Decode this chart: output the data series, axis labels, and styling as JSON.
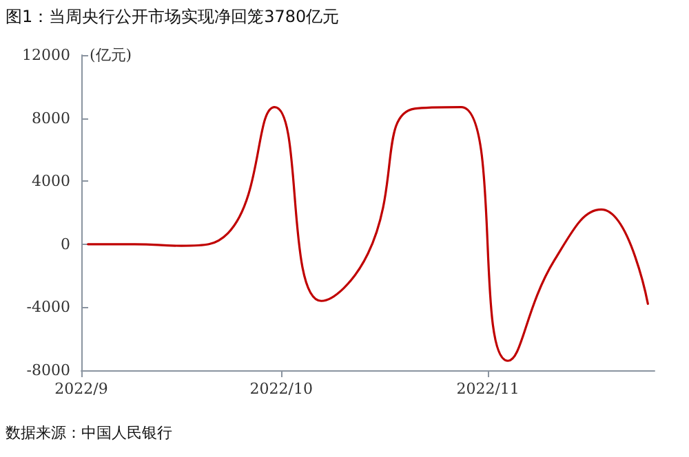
{
  "chart_data": {
    "type": "line",
    "title": "图1：当周央行公开市场实现净回笼3780亿元",
    "ylabel": "(亿元)",
    "annotations": [
      "数据来源：中国人民银行"
    ],
    "x": [
      "2022-09-02",
      "2022-09-09",
      "2022-09-16",
      "2022-09-23",
      "2022-09-30",
      "2022-10-07",
      "2022-10-14",
      "2022-10-21",
      "2022-10-28",
      "2022-11-04",
      "2022-11-11",
      "2022-11-18",
      "2022-11-25"
    ],
    "series": [
      {
        "color": "#c00000",
        "values": [
          0,
          0,
          -100,
          700,
          8700,
          -3600,
          -600,
          8600,
          8700,
          -7400,
          -1000,
          2200,
          -3780
        ]
      }
    ],
    "xlim": [
      "2022-09-01",
      "2022-11-26"
    ],
    "xticks": [
      {
        "value": "2022-09-01",
        "label": "2022/9"
      },
      {
        "value": "2022-10-01",
        "label": "2022/10"
      },
      {
        "value": "2022-11-01",
        "label": "2022/11"
      }
    ],
    "ylim": [
      -8000,
      12000
    ],
    "yticks": [
      -8000,
      -4000,
      0,
      4000,
      8000,
      12000
    ],
    "marker": "none",
    "line_style": "solid"
  }
}
